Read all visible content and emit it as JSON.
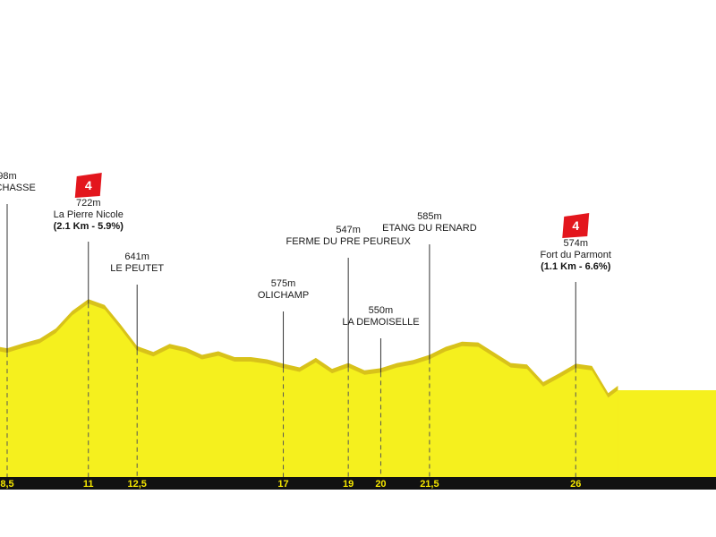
{
  "chart_data": {
    "type": "area",
    "title": "",
    "xlabel": "",
    "ylabel": "",
    "colors": {
      "fill": "#f5f01e",
      "ridge": "#d8c21a",
      "axis_bar": "#111111",
      "axis_text": "#f5e600",
      "climb_badge": "#e3161d"
    },
    "profile": [
      {
        "km": 8.0,
        "alt": 555
      },
      {
        "km": 8.5,
        "alt": 551
      },
      {
        "km": 9.0,
        "alt": 558
      },
      {
        "km": 9.5,
        "alt": 564
      },
      {
        "km": 10.0,
        "alt": 578
      },
      {
        "km": 10.5,
        "alt": 602
      },
      {
        "km": 11.0,
        "alt": 618
      },
      {
        "km": 11.5,
        "alt": 610
      },
      {
        "km": 12.0,
        "alt": 583
      },
      {
        "km": 12.5,
        "alt": 554
      },
      {
        "km": 13.0,
        "alt": 546
      },
      {
        "km": 13.5,
        "alt": 557
      },
      {
        "km": 14.0,
        "alt": 552
      },
      {
        "km": 14.5,
        "alt": 542
      },
      {
        "km": 15.0,
        "alt": 547
      },
      {
        "km": 15.5,
        "alt": 539
      },
      {
        "km": 16.0,
        "alt": 539
      },
      {
        "km": 16.5,
        "alt": 536
      },
      {
        "km": 17.0,
        "alt": 530
      },
      {
        "km": 17.5,
        "alt": 525
      },
      {
        "km": 18.0,
        "alt": 538
      },
      {
        "km": 18.5,
        "alt": 523
      },
      {
        "km": 19.0,
        "alt": 531
      },
      {
        "km": 19.5,
        "alt": 521
      },
      {
        "km": 20.0,
        "alt": 524
      },
      {
        "km": 20.5,
        "alt": 531
      },
      {
        "km": 21.0,
        "alt": 535
      },
      {
        "km": 21.5,
        "alt": 542
      },
      {
        "km": 22.0,
        "alt": 553
      },
      {
        "km": 22.5,
        "alt": 560
      },
      {
        "km": 23.0,
        "alt": 559
      },
      {
        "km": 23.5,
        "alt": 545
      },
      {
        "km": 24.0,
        "alt": 531
      },
      {
        "km": 24.5,
        "alt": 529
      },
      {
        "km": 25.0,
        "alt": 505
      },
      {
        "km": 25.5,
        "alt": 517
      },
      {
        "km": 26.0,
        "alt": 530
      },
      {
        "km": 26.5,
        "alt": 527
      },
      {
        "km": 27.0,
        "alt": 490
      },
      {
        "km": 27.3,
        "alt": 500
      }
    ],
    "x_ticks": [
      {
        "km": 8.5,
        "label": "8,5"
      },
      {
        "km": 11,
        "label": "11"
      },
      {
        "km": 12.5,
        "label": "12,5"
      },
      {
        "km": 17,
        "label": "17"
      },
      {
        "km": 19,
        "label": "19"
      },
      {
        "km": 20,
        "label": "20"
      },
      {
        "km": 21.5,
        "label": "21,5"
      },
      {
        "km": 26,
        "label": "26"
      }
    ],
    "points_of_interest": [
      {
        "km": 8.5,
        "alt_label": "98m",
        "name": "DE CHASSE",
        "level": 1
      },
      {
        "km": 11,
        "alt_label": "722m",
        "name": "La Pierre Nicole",
        "climb": "(2.1 Km - 5.9%)",
        "category": "4",
        "level": 2
      },
      {
        "km": 12.5,
        "alt_label": "641m",
        "name": "LE PEUTET",
        "level": 4
      },
      {
        "km": 17,
        "alt_label": "575m",
        "name": "OLICHAMP",
        "level": 5
      },
      {
        "km": 19,
        "alt_label": "547m",
        "name": "FERME DU PRE PEUREUX",
        "level": 3
      },
      {
        "km": 20,
        "alt_label": "550m",
        "name": "LA DEMOISELLE",
        "level": 6
      },
      {
        "km": 21.5,
        "alt_label": "585m",
        "name": "ETANG DU RENARD",
        "level": 2.5
      },
      {
        "km": 26,
        "alt_label": "574m",
        "name": "Fort du Parmont",
        "climb": "(1.1 Km - 6.6%)",
        "category": "4",
        "level": 3.5
      }
    ]
  }
}
